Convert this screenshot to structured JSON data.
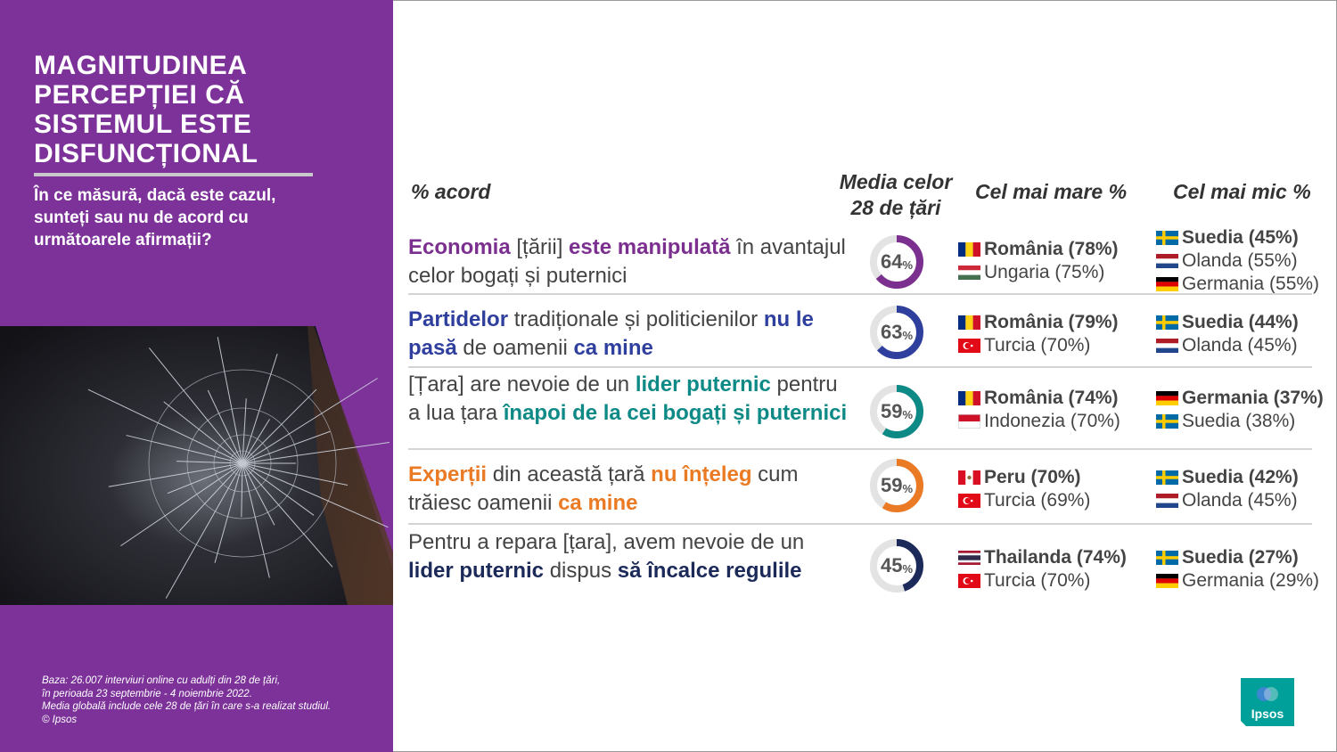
{
  "sidebar": {
    "title": "MAGNITUDINEA PERCEPȚIEI CĂ SISTEMUL ESTE DISFUNCȚIONAL",
    "question": "În ce măsură, dacă este cazul, sunteți sau nu de acord cu următoarele afirmații?",
    "base_note": [
      "Baza: 26.007 interviuri online cu adulți din 28 de țări,",
      "în perioada 23 septembrie - 4 noiembrie 2022.",
      "Media globală include cele 28 de țări în care s-a realizat studiul.",
      "© Ipsos"
    ]
  },
  "headers": {
    "acord": "% acord",
    "media": "Media celor 28 de țări",
    "max": "Cel mai mare %",
    "min": "Cel mai mic %"
  },
  "colors": {
    "purple": "#7b2f8f",
    "blue": "#2f3f9e",
    "teal": "#0e8a86",
    "orange": "#ea7a24",
    "navy": "#1c2a5a",
    "ring_bg": "#e3e3e3",
    "sidebar": "#7c3299"
  },
  "rows": [
    {
      "statement_parts": [
        {
          "text": "Economia",
          "bold": true,
          "color": "purple"
        },
        {
          "text": " [țării] ",
          "bold": false
        },
        {
          "text": "este manipulată",
          "bold": true,
          "color": "purple"
        },
        {
          "text": " în avantajul celor bogați și puternici",
          "bold": false
        }
      ],
      "average": 64,
      "ring_color": "purple",
      "highest": [
        {
          "country": "România (78%)",
          "flag": "ro-flag-icon"
        },
        {
          "country": "Ungaria (75%)",
          "flag": "hu-flag-icon"
        }
      ],
      "lowest": [
        {
          "country": "Suedia (45%)",
          "flag": "se-flag-icon"
        },
        {
          "country": "Olanda (55%)",
          "flag": "nl-flag-icon"
        },
        {
          "country": "Germania (55%)",
          "flag": "de-flag-icon"
        }
      ]
    },
    {
      "statement_parts": [
        {
          "text": "Partidelor",
          "bold": true,
          "color": "blue"
        },
        {
          "text": " tradiționale și politicienilor ",
          "bold": false
        },
        {
          "text": "nu le pasă",
          "bold": true,
          "color": "blue"
        },
        {
          "text": " de oamenii ",
          "bold": false
        },
        {
          "text": "ca mine",
          "bold": true,
          "color": "blue"
        }
      ],
      "average": 63,
      "ring_color": "blue",
      "highest": [
        {
          "country": "România (79%)",
          "flag": "ro-flag-icon"
        },
        {
          "country": "Turcia (70%)",
          "flag": "tr-flag-icon"
        }
      ],
      "lowest": [
        {
          "country": "Suedia (44%)",
          "flag": "se-flag-icon"
        },
        {
          "country": "Olanda (45%)",
          "flag": "nl-flag-icon"
        }
      ]
    },
    {
      "statement_parts": [
        {
          "text": "[Țara] are nevoie de un ",
          "bold": false
        },
        {
          "text": "lider puternic",
          "bold": true,
          "color": "teal"
        },
        {
          "text": " pentru a lua țara ",
          "bold": false
        },
        {
          "text": "înapoi de la cei bogați și puternici",
          "bold": true,
          "color": "teal"
        }
      ],
      "average": 59,
      "ring_color": "teal",
      "highest": [
        {
          "country": "România (74%)",
          "flag": "ro-flag-icon"
        },
        {
          "country": "Indonezia (70%)",
          "flag": "id-flag-icon"
        }
      ],
      "lowest": [
        {
          "country": "Germania (37%)",
          "flag": "de-flag-icon"
        },
        {
          "country": "Suedia (38%)",
          "flag": "se-flag-icon"
        }
      ]
    },
    {
      "statement_parts": [
        {
          "text": "Experții",
          "bold": true,
          "color": "orange"
        },
        {
          "text": " din această țară ",
          "bold": false
        },
        {
          "text": "nu înțeleg",
          "bold": true,
          "color": "orange"
        },
        {
          "text": " cum trăiesc oamenii ",
          "bold": false
        },
        {
          "text": "ca mine",
          "bold": true,
          "color": "orange"
        }
      ],
      "average": 59,
      "ring_color": "orange",
      "highest": [
        {
          "country": "Peru (70%)",
          "flag": "pe-flag-icon"
        },
        {
          "country": "Turcia (69%)",
          "flag": "tr-flag-icon"
        }
      ],
      "lowest": [
        {
          "country": "Suedia (42%)",
          "flag": "se-flag-icon"
        },
        {
          "country": "Olanda (45%)",
          "flag": "nl-flag-icon"
        }
      ]
    },
    {
      "statement_parts": [
        {
          "text": "Pentru a repara [țara], avem nevoie de un ",
          "bold": false
        },
        {
          "text": "lider puternic",
          "bold": true,
          "color": "navy"
        },
        {
          "text": " dispus ",
          "bold": false
        },
        {
          "text": "să încalce regulile",
          "bold": true,
          "color": "navy"
        }
      ],
      "average": 45,
      "ring_color": "navy",
      "highest": [
        {
          "country": "Thailanda (74%)",
          "flag": "th-flag-icon"
        },
        {
          "country": "Turcia (70%)",
          "flag": "tr-flag-icon"
        }
      ],
      "lowest": [
        {
          "country": "Suedia (27%)",
          "flag": "se-flag-icon"
        },
        {
          "country": "Germania (29%)",
          "flag": "de-flag-icon"
        }
      ]
    }
  ],
  "percent_sign": "%",
  "logo": {
    "text": "Ipsos",
    "color": "#00a09a"
  }
}
